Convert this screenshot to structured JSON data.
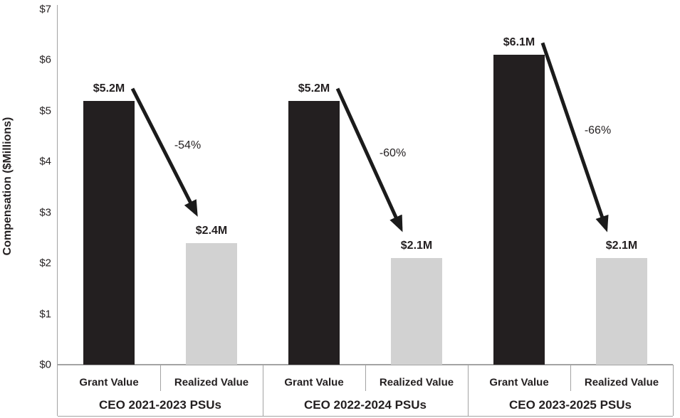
{
  "chart_data": {
    "type": "bar",
    "title": "",
    "ylabel": "Compensation ($Millions)",
    "ylim": [
      0,
      7
    ],
    "grid": false,
    "legend": "none",
    "y_ticks": [
      {
        "label": "$7",
        "value": 7
      },
      {
        "label": "$6",
        "value": 6
      },
      {
        "label": "$5",
        "value": 5
      },
      {
        "label": "$4",
        "value": 4
      },
      {
        "label": "$3",
        "value": 3
      },
      {
        "label": "$2",
        "value": 2
      },
      {
        "label": "$1",
        "value": 1
      },
      {
        "label": "$0",
        "value": 0
      }
    ],
    "series_labels": [
      "Grant Value",
      "Realized Value"
    ],
    "groups": [
      {
        "name": "CEO 2021-2023 PSUs",
        "grant_value": 5.2,
        "realized_value": 2.4,
        "grant_label": "$5.2M",
        "realized_label": "$2.4M",
        "change_pct": -54,
        "change_label": "-54%"
      },
      {
        "name": "CEO 2022-2024 PSUs",
        "grant_value": 5.2,
        "realized_value": 2.1,
        "grant_label": "$5.2M",
        "realized_label": "$2.1M",
        "change_pct": -60,
        "change_label": "-60%"
      },
      {
        "name": "CEO 2023-2025 PSUs",
        "grant_value": 6.1,
        "realized_value": 2.1,
        "grant_label": "$6.1M",
        "realized_label": "$2.1M",
        "change_pct": -66,
        "change_label": "-66%"
      }
    ],
    "colors": {
      "grant_bar": "#231f20",
      "realized_bar": "#d2d2d2",
      "axis_line": "#a3a3a3",
      "arrow": "#1b1b1b",
      "text": "#231f20"
    }
  }
}
